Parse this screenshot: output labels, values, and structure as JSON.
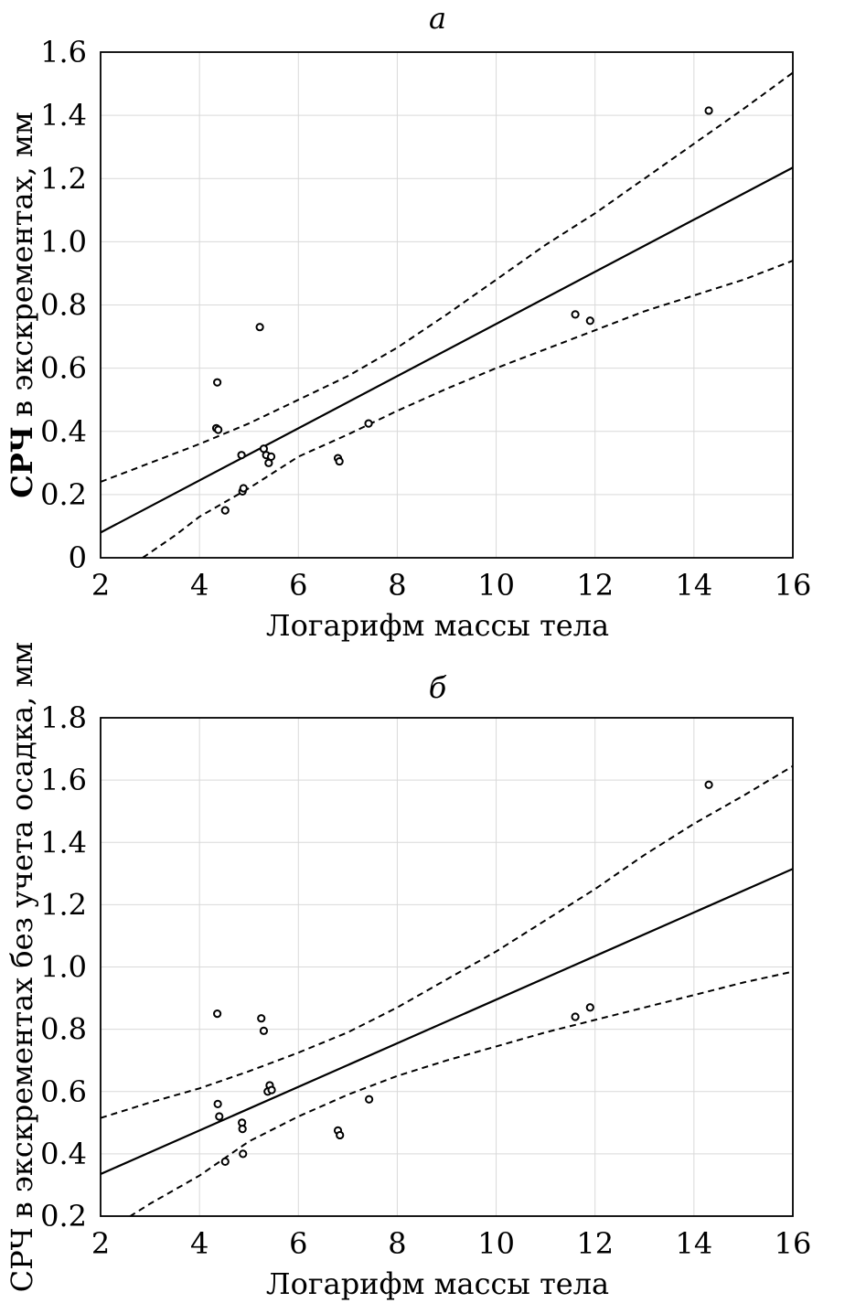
{
  "chart_data": [
    {
      "type": "scatter",
      "title": "а",
      "xlabel": "Логарифм массы тела",
      "ylabel_prefix": "СРЧ",
      "ylabel_rest": " в  экскрементах, мм",
      "xlim": [
        2,
        16
      ],
      "ylim": [
        0,
        1.6
      ],
      "xticks": [
        2,
        4,
        6,
        8,
        10,
        12,
        14,
        16
      ],
      "xtick_labels": [
        "2",
        "4",
        "6",
        "8",
        "10",
        "12",
        "14",
        "16"
      ],
      "yticks": [
        0,
        0.2,
        0.4,
        0.6,
        0.8,
        1.0,
        1.2,
        1.4,
        1.6
      ],
      "ytick_labels": [
        "0",
        "0.2",
        "0.4",
        "0.6",
        "0.8",
        "1.0",
        "1.2",
        "1.4",
        "1.6"
      ],
      "grid": true,
      "points": [
        {
          "x": 4.34,
          "y": 0.41
        },
        {
          "x": 4.38,
          "y": 0.405
        },
        {
          "x": 4.36,
          "y": 0.555
        },
        {
          "x": 4.52,
          "y": 0.15
        },
        {
          "x": 4.85,
          "y": 0.325
        },
        {
          "x": 4.87,
          "y": 0.21
        },
        {
          "x": 4.89,
          "y": 0.22
        },
        {
          "x": 5.22,
          "y": 0.73
        },
        {
          "x": 5.3,
          "y": 0.345
        },
        {
          "x": 5.35,
          "y": 0.325
        },
        {
          "x": 5.4,
          "y": 0.3
        },
        {
          "x": 5.45,
          "y": 0.32
        },
        {
          "x": 6.8,
          "y": 0.315
        },
        {
          "x": 6.83,
          "y": 0.305
        },
        {
          "x": 7.42,
          "y": 0.425
        },
        {
          "x": 11.6,
          "y": 0.77
        },
        {
          "x": 11.9,
          "y": 0.75
        },
        {
          "x": 14.3,
          "y": 1.415
        }
      ],
      "fit_line": {
        "x": [
          2,
          16
        ],
        "y": [
          0.08,
          1.235
        ]
      },
      "ci_upper": {
        "x": [
          2,
          3,
          4,
          5,
          6,
          7,
          8,
          9,
          10,
          11,
          12,
          13,
          14,
          15,
          16
        ],
        "y": [
          0.24,
          0.3,
          0.36,
          0.425,
          0.5,
          0.575,
          0.665,
          0.77,
          0.88,
          0.99,
          1.09,
          1.2,
          1.31,
          1.42,
          1.535
        ]
      },
      "ci_lower": {
        "x": [
          2.85,
          3.5,
          4,
          5,
          6,
          7,
          8,
          9,
          10,
          11,
          12,
          13,
          14,
          15,
          16
        ],
        "y": [
          0,
          0.07,
          0.13,
          0.22,
          0.32,
          0.39,
          0.465,
          0.535,
          0.6,
          0.66,
          0.72,
          0.78,
          0.83,
          0.88,
          0.94
        ]
      }
    },
    {
      "type": "scatter",
      "title": "б",
      "xlabel": "Логарифм массы тела",
      "ylabel_prefix": "",
      "ylabel_rest": "СРЧ в экскрементах без учета осадка, мм",
      "xlim": [
        2,
        16
      ],
      "ylim": [
        0.2,
        1.8
      ],
      "xticks": [
        2,
        4,
        6,
        8,
        10,
        12,
        14,
        16
      ],
      "xtick_labels": [
        "2",
        "4",
        "6",
        "8",
        "10",
        "12",
        "14",
        "16"
      ],
      "yticks": [
        0.2,
        0.4,
        0.6,
        0.8,
        1.0,
        1.2,
        1.4,
        1.6,
        1.8
      ],
      "ytick_labels": [
        "0.2",
        "0.4",
        "0.6",
        "0.8",
        "1.0",
        "1.2",
        "1.4",
        "1.6",
        "1.8"
      ],
      "grid": true,
      "points": [
        {
          "x": 4.36,
          "y": 0.85
        },
        {
          "x": 4.37,
          "y": 0.56
        },
        {
          "x": 4.4,
          "y": 0.52
        },
        {
          "x": 4.52,
          "y": 0.375
        },
        {
          "x": 4.86,
          "y": 0.5
        },
        {
          "x": 4.87,
          "y": 0.48
        },
        {
          "x": 4.88,
          "y": 0.4
        },
        {
          "x": 5.25,
          "y": 0.835
        },
        {
          "x": 5.3,
          "y": 0.795
        },
        {
          "x": 5.38,
          "y": 0.6
        },
        {
          "x": 5.42,
          "y": 0.62
        },
        {
          "x": 5.46,
          "y": 0.605
        },
        {
          "x": 6.8,
          "y": 0.475
        },
        {
          "x": 6.84,
          "y": 0.46
        },
        {
          "x": 7.43,
          "y": 0.575
        },
        {
          "x": 11.6,
          "y": 0.84
        },
        {
          "x": 11.9,
          "y": 0.87
        },
        {
          "x": 14.3,
          "y": 1.585
        }
      ],
      "fit_line": {
        "x": [
          2,
          16
        ],
        "y": [
          0.335,
          1.315
        ]
      },
      "ci_upper": {
        "x": [
          2,
          3,
          4,
          5,
          6,
          7,
          8,
          9,
          10,
          11,
          12,
          13,
          14,
          15,
          16
        ],
        "y": [
          0.515,
          0.565,
          0.61,
          0.665,
          0.725,
          0.79,
          0.87,
          0.96,
          1.05,
          1.15,
          1.25,
          1.36,
          1.46,
          1.55,
          1.645
        ]
      },
      "ci_lower": {
        "x": [
          2.4,
          3,
          4,
          5,
          6,
          7,
          8,
          9,
          10,
          11,
          12,
          13,
          14,
          15,
          16
        ],
        "y": [
          0.18,
          0.24,
          0.33,
          0.44,
          0.52,
          0.59,
          0.65,
          0.7,
          0.745,
          0.79,
          0.83,
          0.87,
          0.91,
          0.95,
          0.985
        ]
      }
    }
  ]
}
